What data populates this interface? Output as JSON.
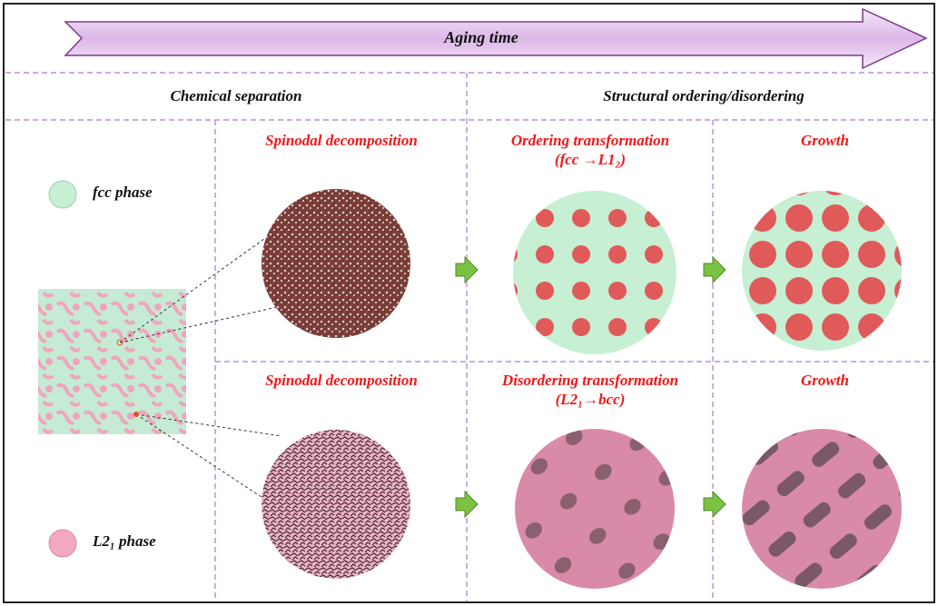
{
  "header": {
    "arrow_label": "Aging time"
  },
  "sections": {
    "left": "Chemical separation",
    "right": "Structural ordering/disordering"
  },
  "legend": {
    "fcc": "fcc phase",
    "l21": "L2₁ phase",
    "fcc_color": "#c6efd3",
    "l21_color": "#f2a9bf"
  },
  "top_row": {
    "col1": "Spinodal decomposition",
    "col2_line1": "Ordering transformation",
    "col2_line2": "(fcc →L1₂)",
    "col3": "Growth"
  },
  "bottom_row": {
    "col1": "Spinodal decomposition",
    "col2_line1": "Disordering transformation",
    "col2_line2": "(L2₁→bcc)",
    "col3": "Growth"
  },
  "colors": {
    "title_red": "#f01818",
    "arrow_fill": "#e6c8ef",
    "arrow_stroke": "#7a3a8a",
    "divider": "#a77ad0",
    "step_arrow": "#7cc242"
  }
}
